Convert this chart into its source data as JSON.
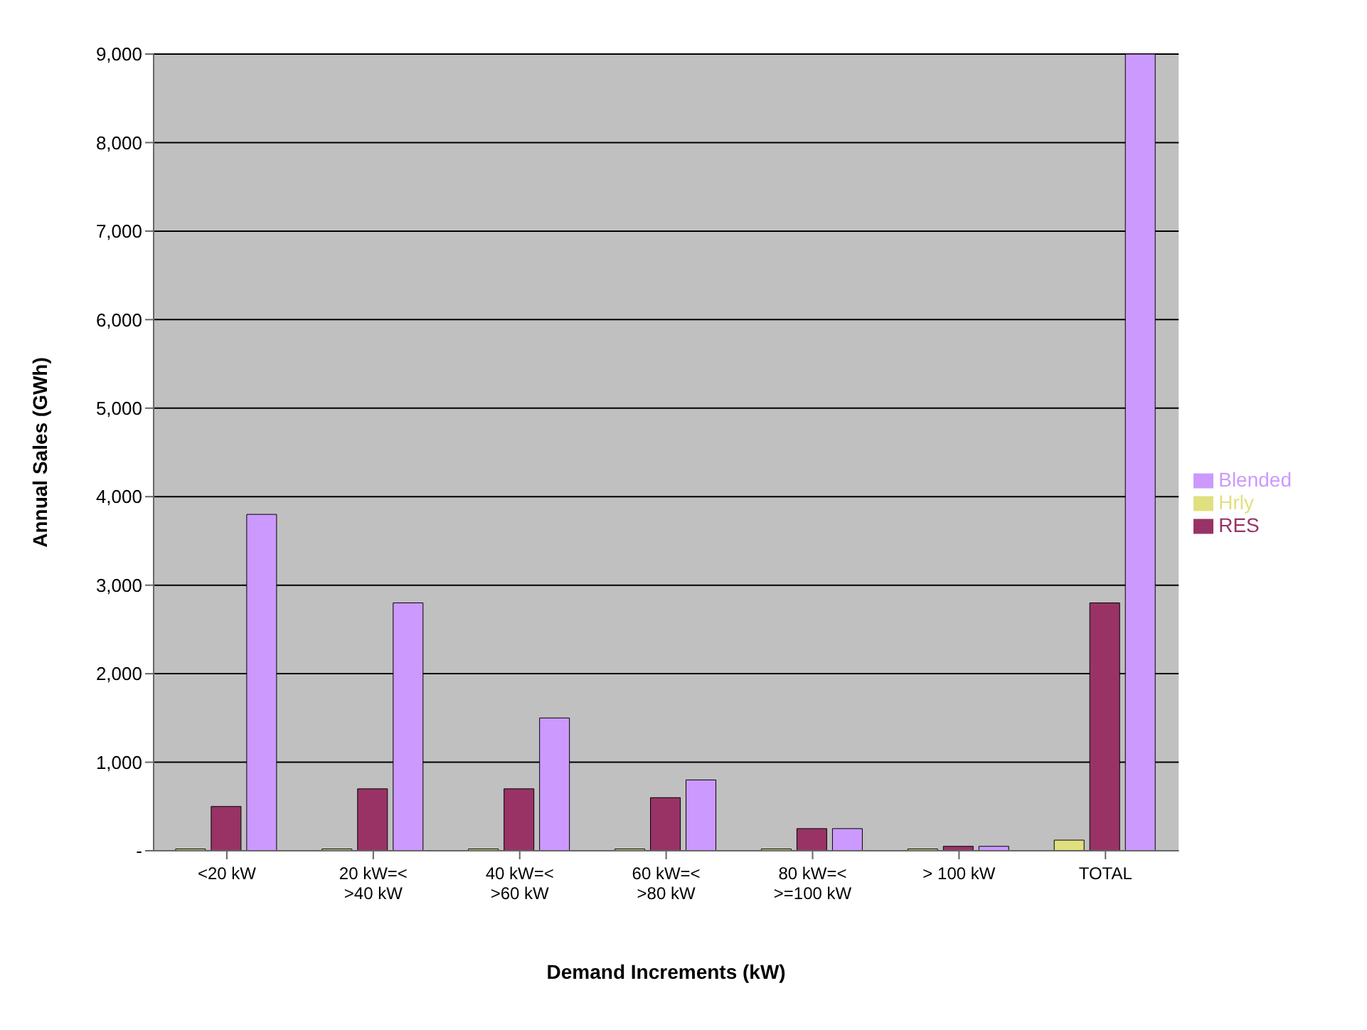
{
  "chart_data": {
    "type": "bar",
    "xlabel": "Demand Increments (kW)",
    "ylabel": "Annual Sales (GWh)",
    "categories": [
      "<20 kW",
      "20 kW=< >40 kW",
      "40 kW=< >60 kW",
      "60 kW=< >80 kW",
      "80 kW=< >=100 kW",
      "> 100 kW",
      "TOTAL"
    ],
    "series": [
      {
        "name": "Hrly",
        "color": "#e0e080",
        "values": [
          20,
          20,
          20,
          20,
          20,
          20,
          120
        ]
      },
      {
        "name": "RES",
        "color": "#993366",
        "values": [
          500,
          700,
          700,
          600,
          250,
          50,
          2800
        ]
      },
      {
        "name": "Blended",
        "color": "#cc99ff",
        "values": [
          3800,
          2800,
          1500,
          800,
          250,
          50,
          9000
        ]
      }
    ],
    "ylim": [
      0,
      9000
    ],
    "yticks": [
      {
        "value": 0,
        "label": "-"
      },
      {
        "value": 1000,
        "label": "1,000"
      },
      {
        "value": 2000,
        "label": "2,000"
      },
      {
        "value": 3000,
        "label": "3,000"
      },
      {
        "value": 4000,
        "label": "4,000"
      },
      {
        "value": 5000,
        "label": "5,000"
      },
      {
        "value": 6000,
        "label": "6,000"
      },
      {
        "value": 7000,
        "label": "7,000"
      },
      {
        "value": 8000,
        "label": "8,000"
      },
      {
        "value": 9000,
        "label": "9,000"
      }
    ],
    "grid": "y",
    "legend": "right"
  }
}
